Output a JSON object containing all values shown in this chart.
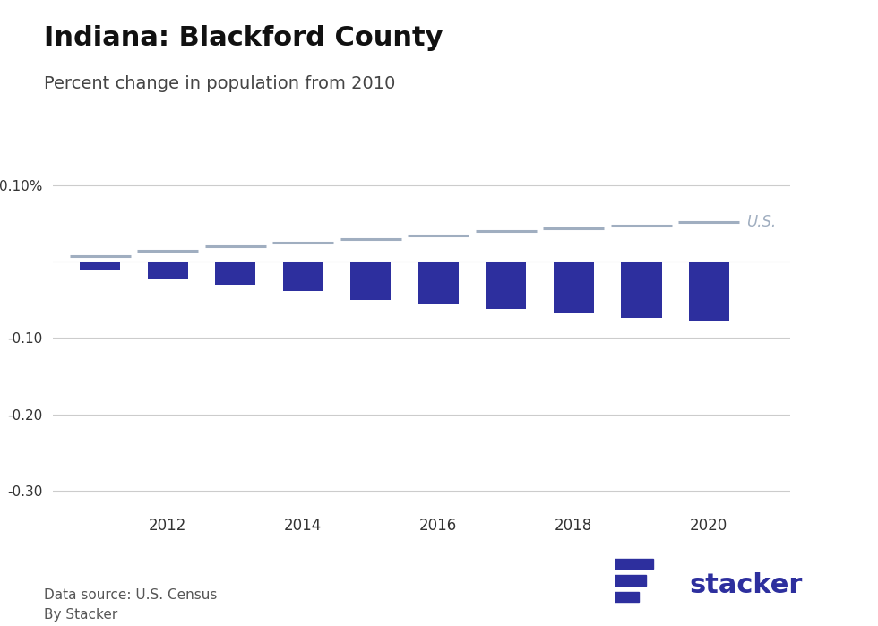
{
  "title": "Indiana: Blackford County",
  "subtitle": "Percent change in population from 2010",
  "years": [
    2011,
    2012,
    2013,
    2014,
    2015,
    2016,
    2017,
    2018,
    2019,
    2020
  ],
  "county_values": [
    -0.01,
    -0.022,
    -0.03,
    -0.038,
    -0.05,
    -0.055,
    -0.062,
    -0.066,
    -0.074,
    -0.077
  ],
  "us_values": [
    0.007,
    0.014,
    0.02,
    0.025,
    0.03,
    0.035,
    0.04,
    0.044,
    0.048,
    0.052
  ],
  "bar_color": "#2d2f9e",
  "us_line_color": "#a0aec0",
  "us_label_color": "#a0aec0",
  "background_color": "#ffffff",
  "ylim": [
    -0.33,
    0.13
  ],
  "yticks": [
    0.1,
    0.0,
    -0.1,
    -0.2,
    -0.3
  ],
  "ytick_labels": [
    "0.10%",
    "",
    "-0.10",
    "-0.20",
    "-0.30"
  ],
  "grid_color": "#cccccc",
  "footer_left": "Data source: U.S. Census\nBy Stacker",
  "stacker_logo_text": "stacker",
  "stacker_logo_color": "#2d2f9e",
  "bar_width": 0.6
}
